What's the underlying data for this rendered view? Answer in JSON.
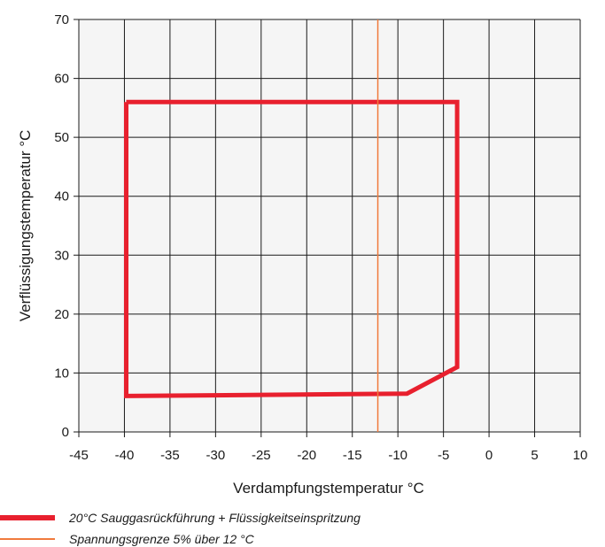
{
  "chart_data": {
    "type": "line",
    "xlabel": "Verdampfungstemperatur °C",
    "ylabel": "Verflüssigungstemperatur °C",
    "xlim": [
      -45,
      10
    ],
    "ylim": [
      0,
      70
    ],
    "x_ticks": [
      -45,
      -40,
      -35,
      -30,
      -25,
      -20,
      -15,
      -10,
      -5,
      0,
      5,
      10
    ],
    "y_ticks": [
      0,
      10,
      20,
      30,
      40,
      50,
      60,
      70
    ],
    "grid": true,
    "plot_background": "#f5f5f5",
    "series": [
      {
        "name": "20°C Sauggasrückführung + Flüssigkeitseinspritzung",
        "color": "#e8202e",
        "style": "thick",
        "points": [
          [
            -39.8,
            56
          ],
          [
            -3.5,
            56
          ],
          [
            -3.5,
            11
          ],
          [
            -9,
            6.5
          ],
          [
            -39.8,
            6.1
          ],
          [
            -39.8,
            56
          ]
        ]
      },
      {
        "name": "Spannungsgrenze 5% über 12 °C",
        "color": "#f07a3c",
        "style": "thin",
        "points": [
          [
            -12.2,
            0
          ],
          [
            -12.2,
            70
          ]
        ]
      }
    ],
    "legend_position": "bottom"
  }
}
